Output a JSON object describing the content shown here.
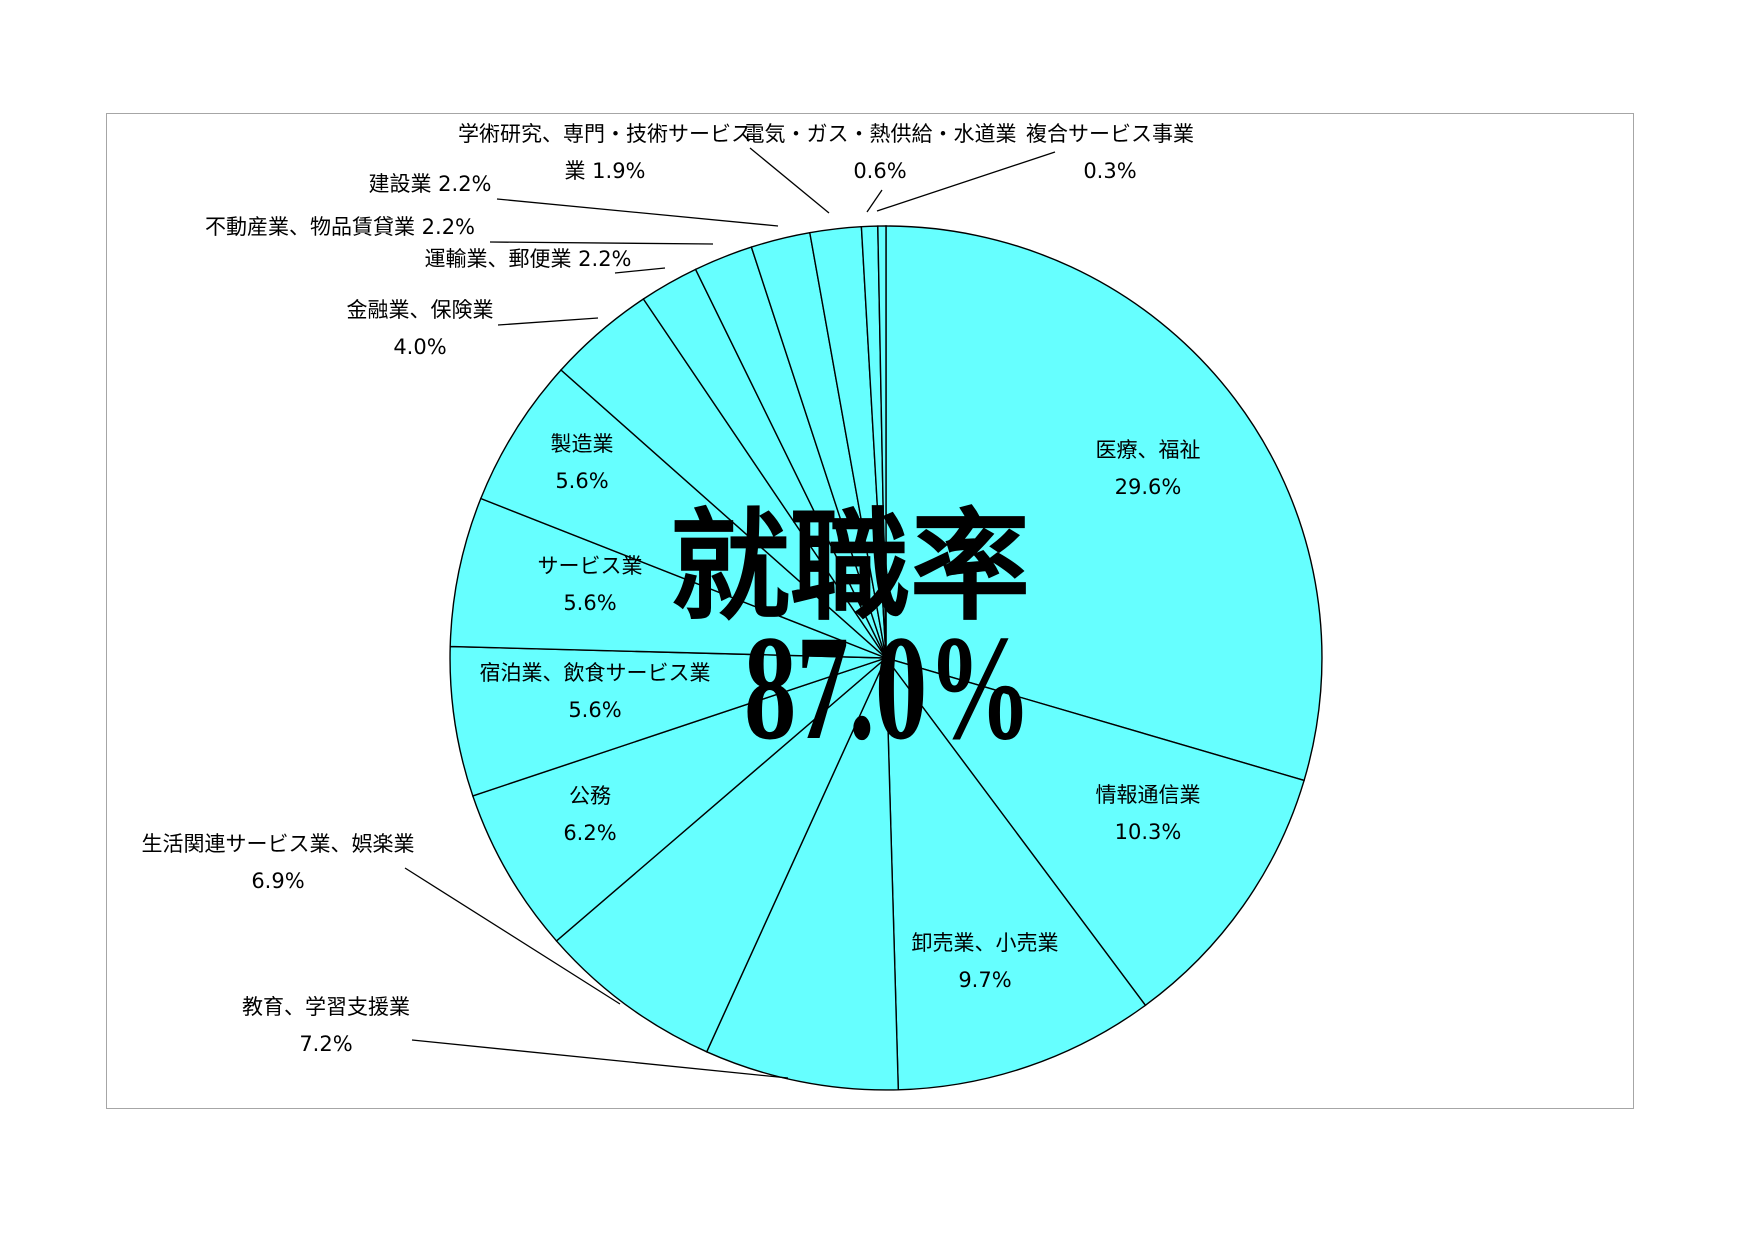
{
  "headline": {
    "title": "就職率",
    "value": "87.0%"
  },
  "colors": {
    "slice_fill": "#66ffff",
    "outline": "#000000",
    "frame": "#a6a6a6"
  },
  "chart_data": {
    "type": "pie",
    "title": "",
    "start_angle": "12 o'clock, clockwise",
    "slices": [
      {
        "category": "医療、福祉",
        "value": 29.6,
        "label_lines": [
          "医療、福祉",
          "29.6%"
        ]
      },
      {
        "category": "情報通信業",
        "value": 10.3,
        "label_lines": [
          "情報通信業",
          "10.3%"
        ]
      },
      {
        "category": "卸売業、小売業",
        "value": 9.7,
        "label_lines": [
          "卸売業、小売業",
          "9.7%"
        ]
      },
      {
        "category": "教育、学習支援業",
        "value": 7.2,
        "label_lines": [
          "教育、学習支援業",
          "7.2%"
        ]
      },
      {
        "category": "生活関連サービス業、娯楽業",
        "value": 6.9,
        "label_lines": [
          "生活関連サービス業、娯楽業",
          "6.9%"
        ]
      },
      {
        "category": "公務",
        "value": 6.2,
        "label_lines": [
          "公務",
          "6.2%"
        ]
      },
      {
        "category": "宿泊業、飲食サービス業",
        "value": 5.6,
        "label_lines": [
          "宿泊業、飲食サービス業",
          "5.6%"
        ]
      },
      {
        "category": "サービス業",
        "value": 5.6,
        "label_lines": [
          "サービス業",
          "5.6%"
        ]
      },
      {
        "category": "製造業",
        "value": 5.6,
        "label_lines": [
          "製造業",
          "5.6%"
        ]
      },
      {
        "category": "金融業、保険業",
        "value": 4.0,
        "label_lines": [
          "金融業、保険業",
          "4.0%"
        ]
      },
      {
        "category": "運輸業、郵便業",
        "value": 2.2,
        "label_lines": [
          "運輸業、郵便業 2.2%"
        ]
      },
      {
        "category": "不動産業、物品賃貸業",
        "value": 2.2,
        "label_lines": [
          "不動産業、物品賃貸業 2.2%"
        ]
      },
      {
        "category": "建設業",
        "value": 2.2,
        "label_lines": [
          "建設業 2.2%"
        ]
      },
      {
        "category": "学術研究、専門・技術サービス業",
        "value": 1.9,
        "label_lines": [
          "学術研究、専門・技術サービス",
          "業 1.9%"
        ]
      },
      {
        "category": "電気・ガス・熱供給・水道業",
        "value": 0.6,
        "label_lines": [
          "電気・ガス・熱供給・水道業",
          "0.6%"
        ]
      },
      {
        "category": "複合サービス事業",
        "value": 0.3,
        "label_lines": [
          "複合サービス事業",
          "0.3%"
        ]
      }
    ]
  }
}
